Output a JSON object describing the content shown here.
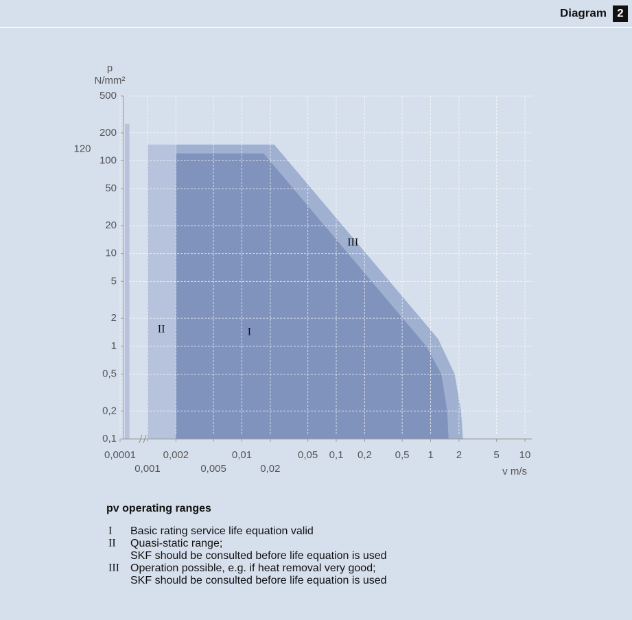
{
  "header": {
    "title": "Diagram",
    "number": "2"
  },
  "chart_data": {
    "type": "region",
    "y_label_symbol": "p",
    "y_label_unit": "N/mm²",
    "x_label": "v m/s",
    "xscale": "log",
    "yscale": "log",
    "x_axis_break": true,
    "grid": true,
    "xlim": [
      0.0001,
      10
    ],
    "ylim": [
      0.1,
      500
    ],
    "xticks": [
      {
        "value": 0.0001,
        "label": "0,0001"
      },
      {
        "value": 0.001,
        "label": "0,001"
      },
      {
        "value": 0.002,
        "label": "0,002"
      },
      {
        "value": 0.005,
        "label": "0,005"
      },
      {
        "value": 0.01,
        "label": "0,01"
      },
      {
        "value": 0.02,
        "label": "0,02"
      },
      {
        "value": 0.05,
        "label": "0,05"
      },
      {
        "value": 0.1,
        "label": "0,1"
      },
      {
        "value": 0.2,
        "label": "0,2"
      },
      {
        "value": 0.5,
        "label": "0,5"
      },
      1,
      2,
      5,
      10
    ],
    "yticks": [
      {
        "value": 0.1,
        "label": "0,1"
      },
      {
        "value": 0.2,
        "label": "0,2"
      },
      {
        "value": 0.5,
        "label": "0,5"
      },
      1,
      2,
      5,
      10,
      20,
      50,
      100,
      200,
      500
    ],
    "y_annotation": 120,
    "series": [
      {
        "name": "I",
        "color": "#7f93bd",
        "x": [
          0.002,
          0.002,
          0.017,
          0.9,
          1.3,
          1.5,
          1.55
        ],
        "values": [
          0.1,
          120,
          120,
          1,
          0.5,
          0.2,
          0.1
        ]
      },
      {
        "name": "II",
        "color": "#b7c3dc",
        "x": [
          0.00015,
          0.00015,
          0.00022,
          0.00022,
          null,
          0.001,
          0.001,
          0.002,
          0.002
        ],
        "values": [
          0.1,
          250,
          250,
          0.1,
          null,
          0.1,
          150,
          150,
          0.1
        ]
      },
      {
        "name": "III",
        "color": "#9fb0d0",
        "x": [
          0.002,
          0.002,
          0.022,
          1.2,
          1.8,
          2.1,
          2.2
        ],
        "values": [
          0.1,
          150,
          150,
          1.2,
          0.5,
          0.2,
          0.1
        ]
      }
    ]
  },
  "legend": {
    "title": "pv operating ranges",
    "items": [
      {
        "lines": [
          "Basic rating service life equation valid"
        ]
      },
      {
        "lines": [
          "Quasi-static range;",
          "SKF should be consulted before life equation is used"
        ]
      },
      {
        "lines": [
          "Operation possible, e.g. if heat removal very good;",
          "SKF should be consulted before life equation is used"
        ]
      }
    ]
  }
}
